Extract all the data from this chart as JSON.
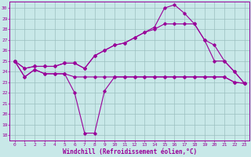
{
  "x": [
    0,
    1,
    2,
    3,
    4,
    5,
    6,
    7,
    8,
    9,
    10,
    11,
    12,
    13,
    14,
    15,
    16,
    17,
    18,
    19,
    20,
    21,
    22,
    23
  ],
  "line_flat": [
    25.0,
    23.5,
    24.2,
    23.8,
    23.8,
    23.8,
    23.5,
    23.5,
    23.5,
    23.5,
    23.5,
    23.5,
    23.5,
    23.5,
    23.5,
    23.5,
    23.5,
    23.5,
    23.5,
    23.5,
    23.5,
    23.5,
    23.0,
    22.9
  ],
  "line_low": [
    25.0,
    23.5,
    24.2,
    23.8,
    23.8,
    23.8,
    22.0,
    18.2,
    18.2,
    22.2,
    23.5,
    23.5,
    23.5,
    23.5,
    23.5,
    23.5,
    23.5,
    23.5,
    23.5,
    23.5,
    23.5,
    23.5,
    23.0,
    22.9
  ],
  "line_mid": [
    25.0,
    24.3,
    24.5,
    24.5,
    24.5,
    24.8,
    24.8,
    24.3,
    25.5,
    26.0,
    26.5,
    26.7,
    27.2,
    27.7,
    28.0,
    28.5,
    28.5,
    28.5,
    28.5,
    27.0,
    26.5,
    25.0,
    24.0,
    22.9
  ],
  "line_top": [
    25.0,
    24.3,
    24.5,
    24.5,
    24.5,
    24.8,
    24.8,
    24.3,
    25.5,
    26.0,
    26.5,
    26.7,
    27.2,
    27.7,
    28.2,
    30.0,
    30.3,
    29.5,
    28.5,
    27.0,
    25.0,
    25.0,
    24.0,
    22.9
  ],
  "color": "#990099",
  "bg_color": "#c8e8e8",
  "grid_color": "#9bbfbf",
  "xlabel": "Windchill (Refroidissement éolien,°C)",
  "xlim": [
    -0.5,
    23.5
  ],
  "ylim": [
    17.5,
    30.6
  ],
  "yticks": [
    18,
    19,
    20,
    21,
    22,
    23,
    24,
    25,
    26,
    27,
    28,
    29,
    30
  ],
  "xticks": [
    0,
    1,
    2,
    3,
    4,
    5,
    6,
    7,
    8,
    9,
    10,
    11,
    12,
    13,
    14,
    15,
    16,
    17,
    18,
    19,
    20,
    21,
    22,
    23
  ]
}
